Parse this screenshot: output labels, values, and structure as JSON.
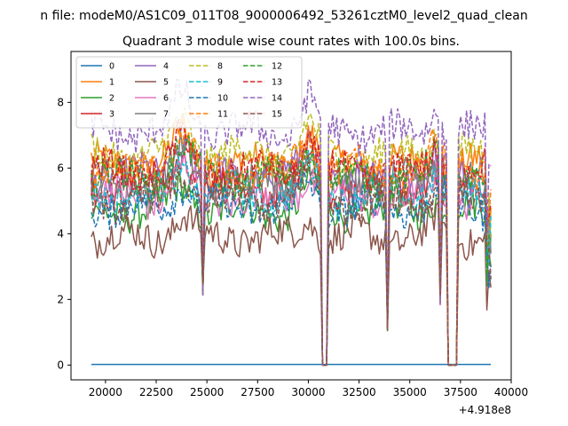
{
  "chart_data": {
    "type": "line",
    "suptitle": "n file: modeM0/AS1C09_011T08_9000006492_53261cztM0_level2_quad_clean",
    "title": "Quadrant 3 module wise count rates with 100.0s bins.",
    "xlabel": "",
    "ylabel": "",
    "x_offset_label": "+4.918e8",
    "xlim": [
      18300,
      40000
    ],
    "ylim": [
      -0.45,
      9.55
    ],
    "x_ticks": [
      20000,
      22500,
      25000,
      27500,
      30000,
      32500,
      35000,
      37500,
      40000
    ],
    "x_tick_labels": [
      "20000",
      "22500",
      "25000",
      "27500",
      "30000",
      "32500",
      "35000",
      "37500",
      "40000"
    ],
    "y_ticks": [
      0,
      2,
      4,
      6,
      8
    ],
    "y_tick_labels": [
      "0",
      "2",
      "4",
      "6",
      "8"
    ],
    "x_start": 19300,
    "x_end": 39000,
    "x_step": 100,
    "gaps": [
      [
        30700,
        30900
      ],
      [
        36900,
        37300
      ]
    ],
    "dips": [
      {
        "x": 24800,
        "v": 2.1
      },
      {
        "x": 33900,
        "v": 1.0
      },
      {
        "x": 36500,
        "v": 1.8
      }
    ],
    "legend_position": "upper-left",
    "series": [
      {
        "name": "0",
        "color": "#1f77b4",
        "dash": "solid",
        "level": 0.02,
        "constant": true
      },
      {
        "name": "1",
        "color": "#ff7f0e",
        "dash": "solid",
        "level": 6.1
      },
      {
        "name": "2",
        "color": "#2ca02c",
        "dash": "solid",
        "level": 4.7
      },
      {
        "name": "3",
        "color": "#d62728",
        "dash": "solid",
        "level": 5.4
      },
      {
        "name": "4",
        "color": "#9467bd",
        "dash": "solid",
        "level": 5.8
      },
      {
        "name": "5",
        "color": "#8c564b",
        "dash": "solid",
        "level": 3.9
      },
      {
        "name": "6",
        "color": "#e377c2",
        "dash": "solid",
        "level": 5.1
      },
      {
        "name": "7",
        "color": "#7f7f7f",
        "dash": "solid",
        "level": 5.6
      },
      {
        "name": "8",
        "color": "#bcbd22",
        "dash": "dashed",
        "level": 6.4
      },
      {
        "name": "9",
        "color": "#17becf",
        "dash": "dashed",
        "level": 5.2
      },
      {
        "name": "10",
        "color": "#1f77b4",
        "dash": "dashed",
        "level": 4.8
      },
      {
        "name": "11",
        "color": "#ff7f0e",
        "dash": "dashed",
        "level": 6.0
      },
      {
        "name": "12",
        "color": "#2ca02c",
        "dash": "dashed",
        "level": 5.7
      },
      {
        "name": "13",
        "color": "#d62728",
        "dash": "dashed",
        "level": 5.9
      },
      {
        "name": "14",
        "color": "#9467bd",
        "dash": "dashed",
        "level": 7.1
      },
      {
        "name": "15",
        "color": "#8c564b",
        "dash": "dashed",
        "level": 5.0
      }
    ]
  }
}
